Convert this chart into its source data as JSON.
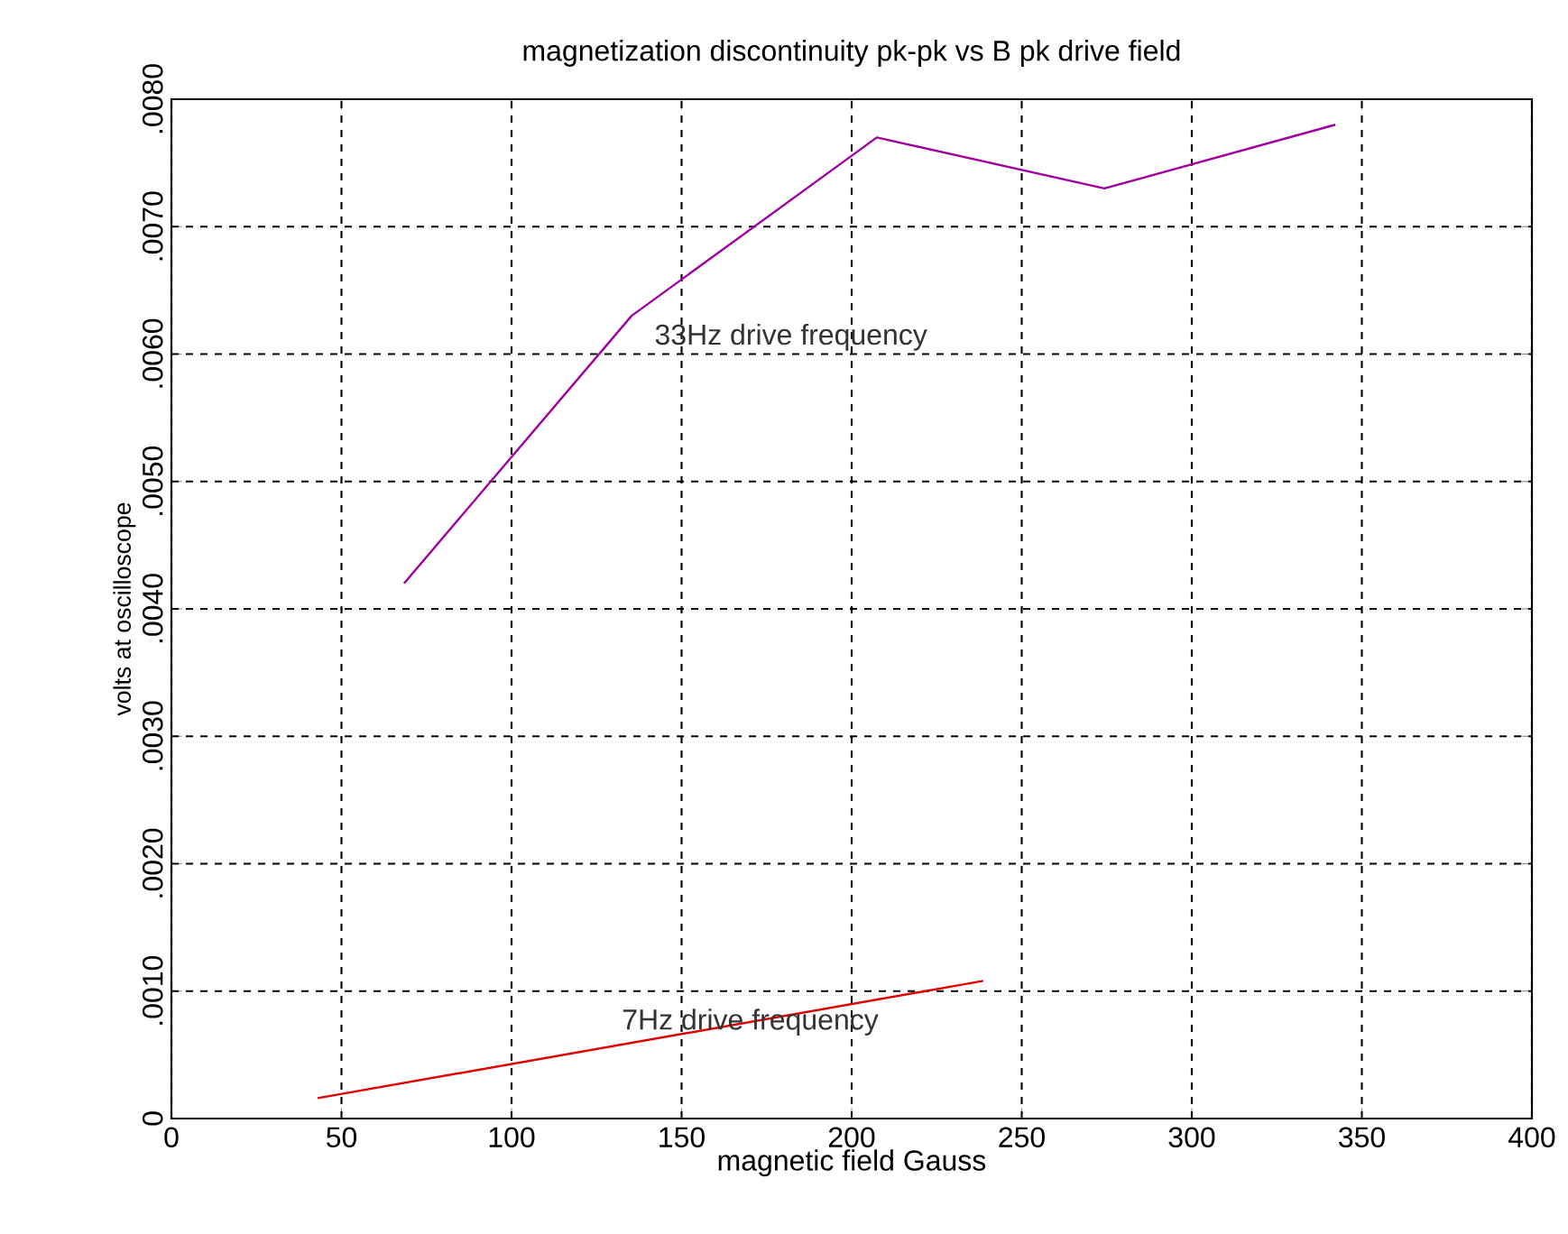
{
  "chart_data": {
    "type": "line",
    "title": "magnetization discontinuity pk-pk vs B pk drive field",
    "xlabel": "magnetic field Gauss",
    "ylabel": "volts at oscilloscope",
    "x": [
      68.4,
      135.3,
      207.4,
      274.3,
      342.2
    ],
    "series": [
      {
        "name": "33Hz drive frequency",
        "color": "#a000a0",
        "values": [
          0.0042,
          0.0063,
          0.0077,
          0.0073,
          0.0078
        ]
      },
      {
        "name": "7Hz drive frequency",
        "color": "#e00000",
        "x": [
          43,
          238.7
        ],
        "values": [
          0.00016,
          0.00108
        ]
      }
    ],
    "xlim": [
      0,
      400
    ],
    "ylim": [
      0,
      0.008
    ],
    "xticks": [
      0,
      50,
      100,
      150,
      200,
      250,
      300,
      350,
      400
    ],
    "yticks": [
      0,
      {
        "value": 0.001,
        "label": ".0010"
      },
      {
        "value": 0.002,
        "label": ".0020"
      },
      {
        "value": 0.003,
        "label": ".0030"
      },
      {
        "value": 0.004,
        "label": ".0040"
      },
      {
        "value": 0.005,
        "label": ".0050"
      },
      {
        "value": 0.006,
        "label": ".0060"
      },
      {
        "value": 0.007,
        "label": ".0070"
      },
      {
        "value": 0.008,
        "label": ".0080"
      }
    ],
    "grid": true,
    "line_style": "solid",
    "marker": "none",
    "legend": false
  }
}
